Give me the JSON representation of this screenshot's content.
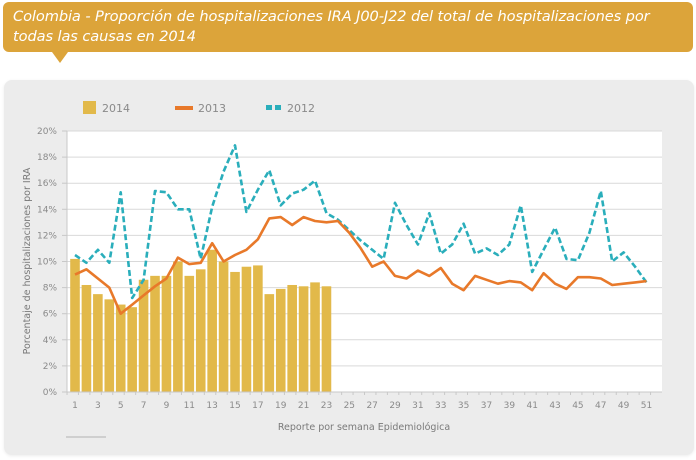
{
  "header": {
    "title": "Colombia - Proporción de hospitalizaciones IRA J00-J22 del total de hospitalizaciones por todas las causas en 2014"
  },
  "colors": {
    "banner": "#dca43a",
    "bar_2014": "#e2b94a",
    "line_2013": "#e8792a",
    "line_2012": "#2aaebb"
  },
  "chart_data": {
    "type": "bar",
    "title": "Colombia - Proporción de hospitalizaciones IRA J00-J22 del total de hospitalizaciones por todas las causas en 2014",
    "xlabel": "Reporte por semana Epidemiológica",
    "ylabel": "Porcentaje de hospitalizaciones por IRA",
    "ylim": [
      0,
      20
    ],
    "y_ticks": [
      "0%",
      "2%",
      "4%",
      "6%",
      "8%",
      "10%",
      "12%",
      "14%",
      "16%",
      "18%",
      "20%"
    ],
    "x_tick_labels": [
      "1",
      "3",
      "5",
      "7",
      "9",
      "11",
      "13",
      "15",
      "17",
      "19",
      "21",
      "23",
      "25",
      "27",
      "29",
      "31",
      "33",
      "35",
      "37",
      "39",
      "41",
      "43",
      "45",
      "47",
      "49",
      "51"
    ],
    "x_range": [
      1,
      52
    ],
    "grid": "horizontal",
    "legend_position": "top-left",
    "series": [
      {
        "name": "2014",
        "type": "bar",
        "x": [
          1,
          2,
          3,
          4,
          5,
          6,
          7,
          8,
          9,
          10,
          11,
          12,
          13,
          14,
          15,
          16,
          17,
          18,
          19,
          20,
          21,
          22,
          23
        ],
        "values": [
          10.2,
          8.2,
          7.5,
          7.1,
          6.7,
          6.5,
          8.6,
          8.9,
          8.9,
          10.0,
          8.9,
          9.4,
          10.9,
          10.0,
          9.2,
          9.6,
          9.7,
          7.5,
          7.9,
          8.2,
          8.1,
          8.4,
          8.1
        ]
      },
      {
        "name": "2013",
        "type": "line",
        "x": [
          1,
          2,
          3,
          4,
          5,
          6,
          7,
          8,
          9,
          10,
          11,
          12,
          13,
          14,
          15,
          16,
          17,
          18,
          19,
          20,
          21,
          22,
          23,
          24,
          25,
          26,
          27,
          28,
          29,
          30,
          31,
          32,
          33,
          34,
          35,
          36,
          37,
          38,
          39,
          40,
          41,
          42,
          43,
          44,
          45,
          46,
          47,
          48,
          49,
          50,
          51
        ],
        "values": [
          9.0,
          9.4,
          8.7,
          8.0,
          6.0,
          6.7,
          7.4,
          8.1,
          8.7,
          10.3,
          9.8,
          9.9,
          11.4,
          10.0,
          10.5,
          10.9,
          11.7,
          13.3,
          13.4,
          12.8,
          13.4,
          13.1,
          13.0,
          13.1,
          12.2,
          11.0,
          9.6,
          10.0,
          8.9,
          8.7,
          9.3,
          8.9,
          9.5,
          8.3,
          7.8,
          8.9,
          8.6,
          8.3,
          8.5,
          8.4,
          7.8,
          9.1,
          8.3,
          7.9,
          8.8,
          8.8,
          8.7,
          8.2,
          8.3,
          8.4,
          8.5
        ]
      },
      {
        "name": "2012",
        "type": "line",
        "style": "dashed",
        "x": [
          1,
          2,
          3,
          4,
          5,
          6,
          7,
          8,
          9,
          10,
          11,
          12,
          13,
          14,
          15,
          16,
          17,
          18,
          19,
          20,
          21,
          22,
          23,
          24,
          25,
          26,
          27,
          28,
          29,
          30,
          31,
          32,
          33,
          34,
          35,
          36,
          37,
          38,
          39,
          40,
          41,
          42,
          43,
          44,
          45,
          46,
          47,
          48,
          49,
          50,
          51
        ],
        "values": [
          10.5,
          9.9,
          10.9,
          9.9,
          15.3,
          7.2,
          8.6,
          15.4,
          15.3,
          14.0,
          14.0,
          10.2,
          14.2,
          16.9,
          18.9,
          13.8,
          15.5,
          17.0,
          14.3,
          15.2,
          15.5,
          16.2,
          13.7,
          13.2,
          12.4,
          11.6,
          10.9,
          10.2,
          14.5,
          12.8,
          11.3,
          13.7,
          10.6,
          11.3,
          12.9,
          10.6,
          11.0,
          10.5,
          11.3,
          14.3,
          9.2,
          10.9,
          12.6,
          10.2,
          10.1,
          12.2,
          15.4,
          10.0,
          10.7,
          9.6,
          8.4
        ]
      }
    ]
  }
}
